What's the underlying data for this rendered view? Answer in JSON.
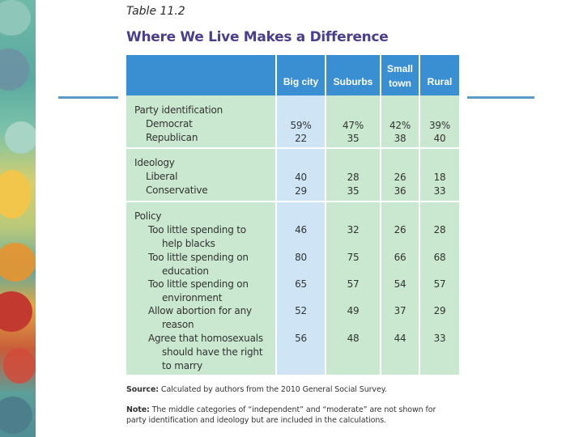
{
  "table": {
    "label": "Table 11.2",
    "title": "Where We Live Makes a Difference",
    "columns": [
      "Big city",
      "Suburbs",
      "Small town",
      "Rural"
    ],
    "sections": [
      {
        "heading": "Party identification",
        "rows": [
          {
            "label": "Democrat",
            "values": [
              "59%",
              "47%",
              "42%",
              "39%"
            ]
          },
          {
            "label": "Republican",
            "values": [
              "22",
              "35",
              "38",
              "40"
            ]
          }
        ]
      },
      {
        "heading": "Ideology",
        "rows": [
          {
            "label": "Liberal",
            "values": [
              "40",
              "28",
              "26",
              "18"
            ]
          },
          {
            "label": "Conservative",
            "values": [
              "29",
              "35",
              "36",
              "33"
            ]
          }
        ]
      },
      {
        "heading": "Policy",
        "rows": [
          {
            "label": "Too little spending to help blacks",
            "line1": "Too little spending to",
            "line2": "help blacks",
            "values": [
              "46",
              "32",
              "26",
              "28"
            ]
          },
          {
            "label": "Too little spending on education",
            "line1": "Too little spending on",
            "line2": "education",
            "values": [
              "80",
              "75",
              "66",
              "68"
            ]
          },
          {
            "label": "Too little spending on environment",
            "line1": "Too little spending on",
            "line2": "environment",
            "values": [
              "65",
              "57",
              "54",
              "57"
            ]
          },
          {
            "label": "Allow abortion for any reason",
            "line1": "Allow abortion for any",
            "line2": "reason",
            "values": [
              "52",
              "49",
              "37",
              "29"
            ]
          },
          {
            "label": "Agree that homosexuals should have the right to marry",
            "line1": "Agree that homosexuals",
            "line2": "should have the right",
            "line3": "to marry",
            "values": [
              "56",
              "48",
              "44",
              "33"
            ]
          }
        ]
      }
    ],
    "source_label": "Source:",
    "source_text": "Calculated by authors from the 2010 General Social Survey.",
    "note_label": "Note:",
    "note_text": "The middle categories of “independent” and “moderate” are not shown for party identification and ideology but are included in the calculations."
  },
  "colors": {
    "header": "#3a8fd2",
    "title": "#4a3f8f",
    "cell_green": "#c9e8cf",
    "cell_blue": "#cfe5f6"
  }
}
